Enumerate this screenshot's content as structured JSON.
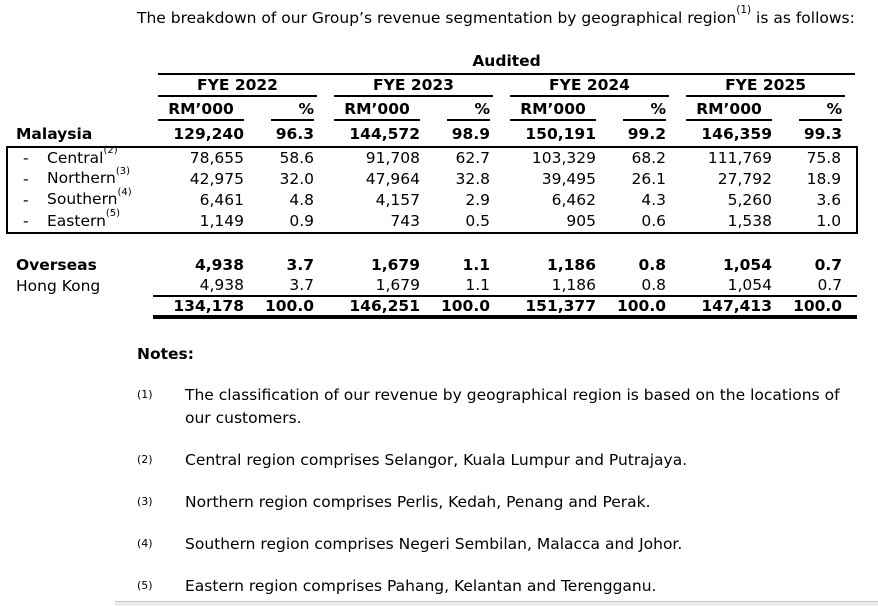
{
  "intro": {
    "pre": "The breakdown of our Group’s revenue segmentation by geographical region",
    "sup": "(1)",
    "post": " is as follows:"
  },
  "table": {
    "audited": "Audited",
    "years": [
      "FYE 2022",
      "FYE 2023",
      "FYE 2024",
      "FYE 2025"
    ],
    "unit_header": "RM’000",
    "pct_header": "%",
    "rows": {
      "malaysia": {
        "label": "Malaysia",
        "values": [
          "129,240",
          "96.3",
          "144,572",
          "98.9",
          "150,191",
          "99.2",
          "146,359",
          "99.3"
        ]
      },
      "central": {
        "dash": "-",
        "label": "Central",
        "sup": "(2)",
        "values": [
          "78,655",
          "58.6",
          "91,708",
          "62.7",
          "103,329",
          "68.2",
          "111,769",
          "75.8"
        ]
      },
      "northern": {
        "dash": "-",
        "label": "Northern",
        "sup": "(3)",
        "values": [
          "42,975",
          "32.0",
          "47,964",
          "32.8",
          "39,495",
          "26.1",
          "27,792",
          "18.9"
        ]
      },
      "southern": {
        "dash": "-",
        "label": "Southern",
        "sup": "(4)",
        "values": [
          "6,461",
          "4.8",
          "4,157",
          "2.9",
          "6,462",
          "4.3",
          "5,260",
          "3.6"
        ]
      },
      "eastern": {
        "dash": "-",
        "label": "Eastern",
        "sup": "(5)",
        "values": [
          "1,149",
          "0.9",
          "743",
          "0.5",
          "905",
          "0.6",
          "1,538",
          "1.0"
        ]
      },
      "overseas": {
        "label": "Overseas",
        "values": [
          "4,938",
          "3.7",
          "1,679",
          "1.1",
          "1,186",
          "0.8",
          "1,054",
          "0.7"
        ]
      },
      "hong_kong": {
        "label": "Hong Kong",
        "values": [
          "4,938",
          "3.7",
          "1,679",
          "1.1",
          "1,186",
          "0.8",
          "1,054",
          "0.7"
        ]
      },
      "total": {
        "values": [
          "134,178",
          "100.0",
          "146,251",
          "100.0",
          "151,377",
          "100.0",
          "147,413",
          "100.0"
        ]
      }
    }
  },
  "notes": {
    "heading": "Notes:",
    "items": [
      {
        "marker": "(1)",
        "text": "The classification of our revenue by geographical region is based on the locations of our customers."
      },
      {
        "marker": "(2)",
        "text": "Central region comprises Selangor, Kuala Lumpur and Putrajaya."
      },
      {
        "marker": "(3)",
        "text": "Northern region comprises Perlis, Kedah, Penang and Perak."
      },
      {
        "marker": "(4)",
        "text": "Southern region comprises Negeri Sembilan, Malacca and Johor."
      },
      {
        "marker": "(5)",
        "text": "Eastern region comprises Pahang, Kelantan and Terengganu."
      }
    ]
  },
  "colors": {
    "text": "#000000",
    "bottom_strip_bg": "#ececec",
    "bottom_strip_border": "#c9c9c9"
  }
}
